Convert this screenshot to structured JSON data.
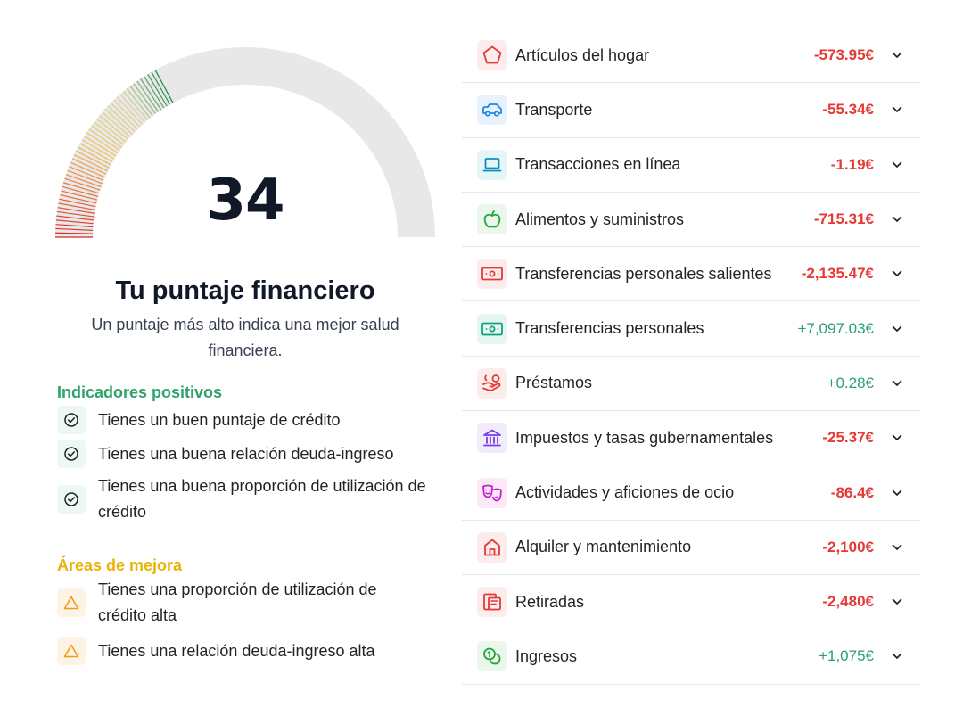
{
  "score": {
    "value": "34",
    "fraction": 0.34,
    "title": "Tu puntaje financiero",
    "subtitle": "Un puntaje más alto indica una mejor salud financiera."
  },
  "positive": {
    "title": "Indicadores positivos",
    "color": "#2fa36b",
    "items": [
      "Tienes un buen puntaje de crédito",
      "Tienes una buena relación deuda-ingreso",
      "Tienes una buena proporción de utilización de crédito"
    ]
  },
  "improve": {
    "title": "Áreas de mejora",
    "color": "#eab308",
    "items": [
      "Tienes una proporción de utilización de crédito alta",
      "Tienes una relación deuda-ingreso alta"
    ]
  },
  "colors": {
    "negative": "#e53935",
    "positive": "#2a9d7f"
  },
  "categories": [
    {
      "icon": "pentagon-icon",
      "label": "Artículos del hogar",
      "amount": "-573.95€",
      "sign": "neg"
    },
    {
      "icon": "car-icon",
      "label": "Transporte",
      "amount": "-55.34€",
      "sign": "neg"
    },
    {
      "icon": "laptop-icon",
      "label": "Transacciones en línea",
      "amount": "-1.19€",
      "sign": "neg"
    },
    {
      "icon": "apple-icon",
      "label": "Alimentos y suministros",
      "amount": "-715.31€",
      "sign": "neg"
    },
    {
      "icon": "banknote-icon",
      "label": "Transferencias personales salientes",
      "amount": "-2,135.47€",
      "sign": "neg"
    },
    {
      "icon": "banknote-icon",
      "label": "Transferencias personales",
      "amount": "+7,097.03€",
      "sign": "pos"
    },
    {
      "icon": "hand-coins-icon",
      "label": "Préstamos",
      "amount": "+0.28€",
      "sign": "pos"
    },
    {
      "icon": "bank-icon",
      "label": "Impuestos y tasas gubernamentales",
      "amount": "-25.37€",
      "sign": "neg"
    },
    {
      "icon": "drama-masks-icon",
      "label": "Actividades y aficiones de ocio",
      "amount": "-86.4€",
      "sign": "neg"
    },
    {
      "icon": "home-icon",
      "label": "Alquiler y mantenimiento",
      "amount": "-2,100€",
      "sign": "neg"
    },
    {
      "icon": "withdraw-icon",
      "label": "Retiradas",
      "amount": "-2,480€",
      "sign": "neg"
    },
    {
      "icon": "coins-icon",
      "label": "Ingresos",
      "amount": "+1,075€",
      "sign": "pos"
    }
  ]
}
